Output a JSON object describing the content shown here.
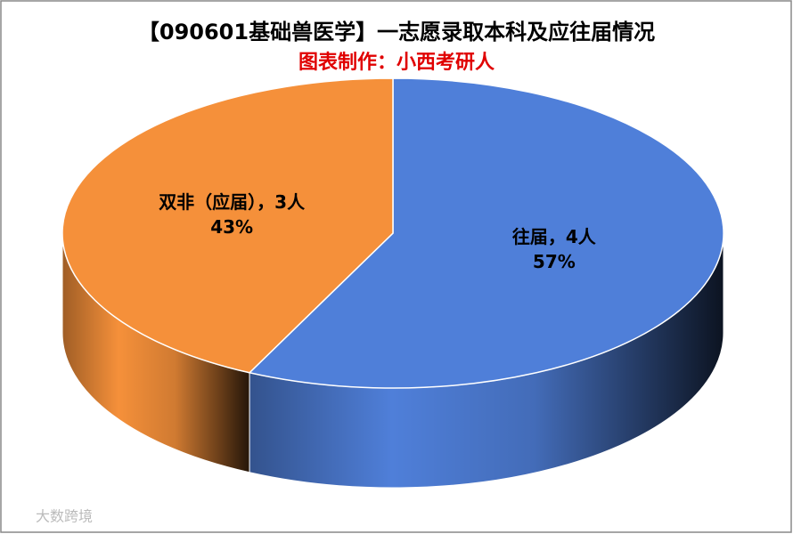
{
  "chart_data": {
    "type": "pie",
    "title": "【090601基础兽医学】一志愿录取本科及应往届情况",
    "subtitle": "图表制作：小西考研人",
    "categories": [
      "往届",
      "双非（应届）"
    ],
    "values": [
      4,
      3
    ],
    "value_labels": [
      "往届，4人",
      "双非（应届），3人"
    ],
    "percents": [
      57,
      43
    ],
    "percent_labels": [
      "57%",
      "43%"
    ],
    "colors": [
      "#4f7fd9",
      "#f5903a"
    ],
    "watermark": "大数跨境"
  }
}
